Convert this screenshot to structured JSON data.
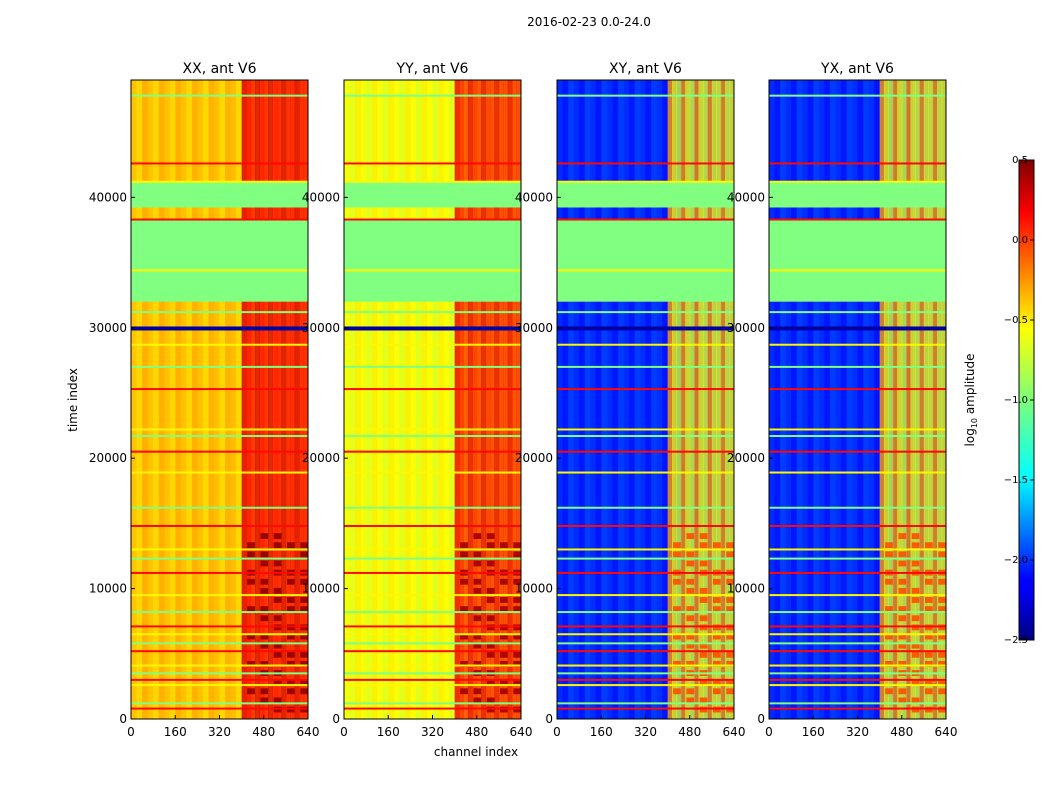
{
  "chart_data": {
    "type": "heatmap",
    "suptitle": "2016-02-23 0.0-24.0",
    "xlabel": "channel index",
    "ylabel": "time index",
    "xlim": [
      0,
      640
    ],
    "ylim": [
      0,
      49000
    ],
    "x_ticks": [
      "0",
      "160",
      "320",
      "480",
      "640"
    ],
    "y_ticks": [
      "0",
      "10000",
      "20000",
      "30000",
      "40000"
    ],
    "y_tick_values": [
      0,
      10000,
      20000,
      30000,
      40000
    ],
    "colorbar": {
      "label_prefix": "log",
      "label_sub": "10",
      "label_suffix": " amplitude",
      "range": [
        -2.5,
        0.5
      ],
      "ticks": [
        "0.5",
        "0.0",
        "−0.5",
        "−1.0",
        "−1.5",
        "−2.0",
        "−2.5"
      ],
      "tick_values": [
        0.5,
        0.0,
        -0.5,
        -1.0,
        -1.5,
        -2.0,
        -2.5
      ]
    },
    "panels": [
      {
        "title": "XX, ant V6",
        "base_level": -0.45,
        "rfi_level": 0.25,
        "show_ylabel": true
      },
      {
        "title": "YY, ant V6",
        "base_level": -0.65,
        "rfi_level": 0.2,
        "show_ylabel": false
      },
      {
        "title": "XY, ant V6",
        "base_level": -2.0,
        "rfi_level": -0.3,
        "show_ylabel": false
      },
      {
        "title": "YX, ant V6",
        "base_level": -2.0,
        "rfi_level": -0.3,
        "show_ylabel": false
      }
    ],
    "flagged_time_ranges": [
      {
        "from": 32000,
        "to": 38300,
        "level": -1.0
      },
      {
        "from": 39300,
        "to": 41200,
        "level": -1.0
      }
    ],
    "interference_channel_range": [
      400,
      640
    ],
    "flag_line_times": [
      800,
      1200,
      2600,
      3000,
      3500,
      4100,
      5200,
      5800,
      6500,
      7100,
      8200,
      9500,
      11200,
      12300,
      13000,
      14800,
      16200,
      18900,
      20500,
      21700,
      22200,
      25300,
      27000,
      28700,
      30000,
      31200,
      34400,
      38300,
      39300,
      41200,
      42600,
      47800
    ]
  }
}
